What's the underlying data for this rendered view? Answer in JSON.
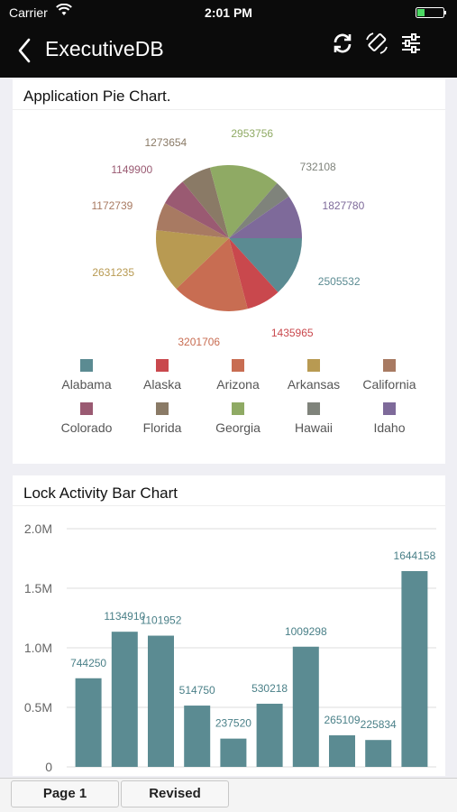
{
  "status_bar": {
    "carrier": "Carrier",
    "time": "2:01 PM"
  },
  "nav": {
    "title": "ExecutiveDB",
    "icons": [
      "chevron-left-icon",
      "refresh-icon",
      "rotate-icon",
      "sliders-icon"
    ]
  },
  "pie_card": {
    "title": "Application Pie Chart."
  },
  "bar_card": {
    "title": "Lock Activity Bar Chart"
  },
  "tabs": [
    {
      "label": "Page 1"
    },
    {
      "label": "Revised"
    }
  ],
  "chart_data": [
    {
      "type": "pie",
      "title": "Application Pie Chart.",
      "categories": [
        "Alabama",
        "Alaska",
        "Arizona",
        "Arkansas",
        "California",
        "Colorado",
        "Florida",
        "Georgia",
        "Hawaii",
        "Idaho"
      ],
      "values": [
        2505532,
        1435965,
        3201706,
        2631235,
        1172739,
        1149900,
        1273654,
        2953756,
        732108,
        1827780
      ],
      "labels": [
        "2505532",
        "1435965",
        "3201706",
        "2631235",
        "1172739",
        "1149900",
        "1273654",
        "2953756",
        "732108",
        "1827780"
      ],
      "colors": [
        "#5b8b92",
        "#c9484d",
        "#c86d52",
        "#b89a52",
        "#a87a62",
        "#9a5a72",
        "#8a7a66",
        "#8faa64",
        "#7f837b",
        "#7e6a9a"
      ],
      "legend": "bottom"
    },
    {
      "type": "bar",
      "title": "Lock Activity Bar Chart",
      "values": [
        744250,
        1134910,
        1101952,
        514750,
        237520,
        530218,
        1009298,
        265109,
        225834,
        1644158
      ],
      "labels": [
        "744250",
        "1134910",
        "1101952",
        "514750",
        "237520",
        "530218",
        "1009298",
        "265109",
        "225834",
        "1644158"
      ],
      "ylim": [
        0,
        2000000
      ],
      "yticks": [
        "0",
        "0.5M",
        "1.0M",
        "1.5M",
        "2.0M"
      ],
      "ytick_values": [
        0,
        500000,
        1000000,
        1500000,
        2000000
      ],
      "color": "#5b8b92",
      "grid": true
    }
  ]
}
